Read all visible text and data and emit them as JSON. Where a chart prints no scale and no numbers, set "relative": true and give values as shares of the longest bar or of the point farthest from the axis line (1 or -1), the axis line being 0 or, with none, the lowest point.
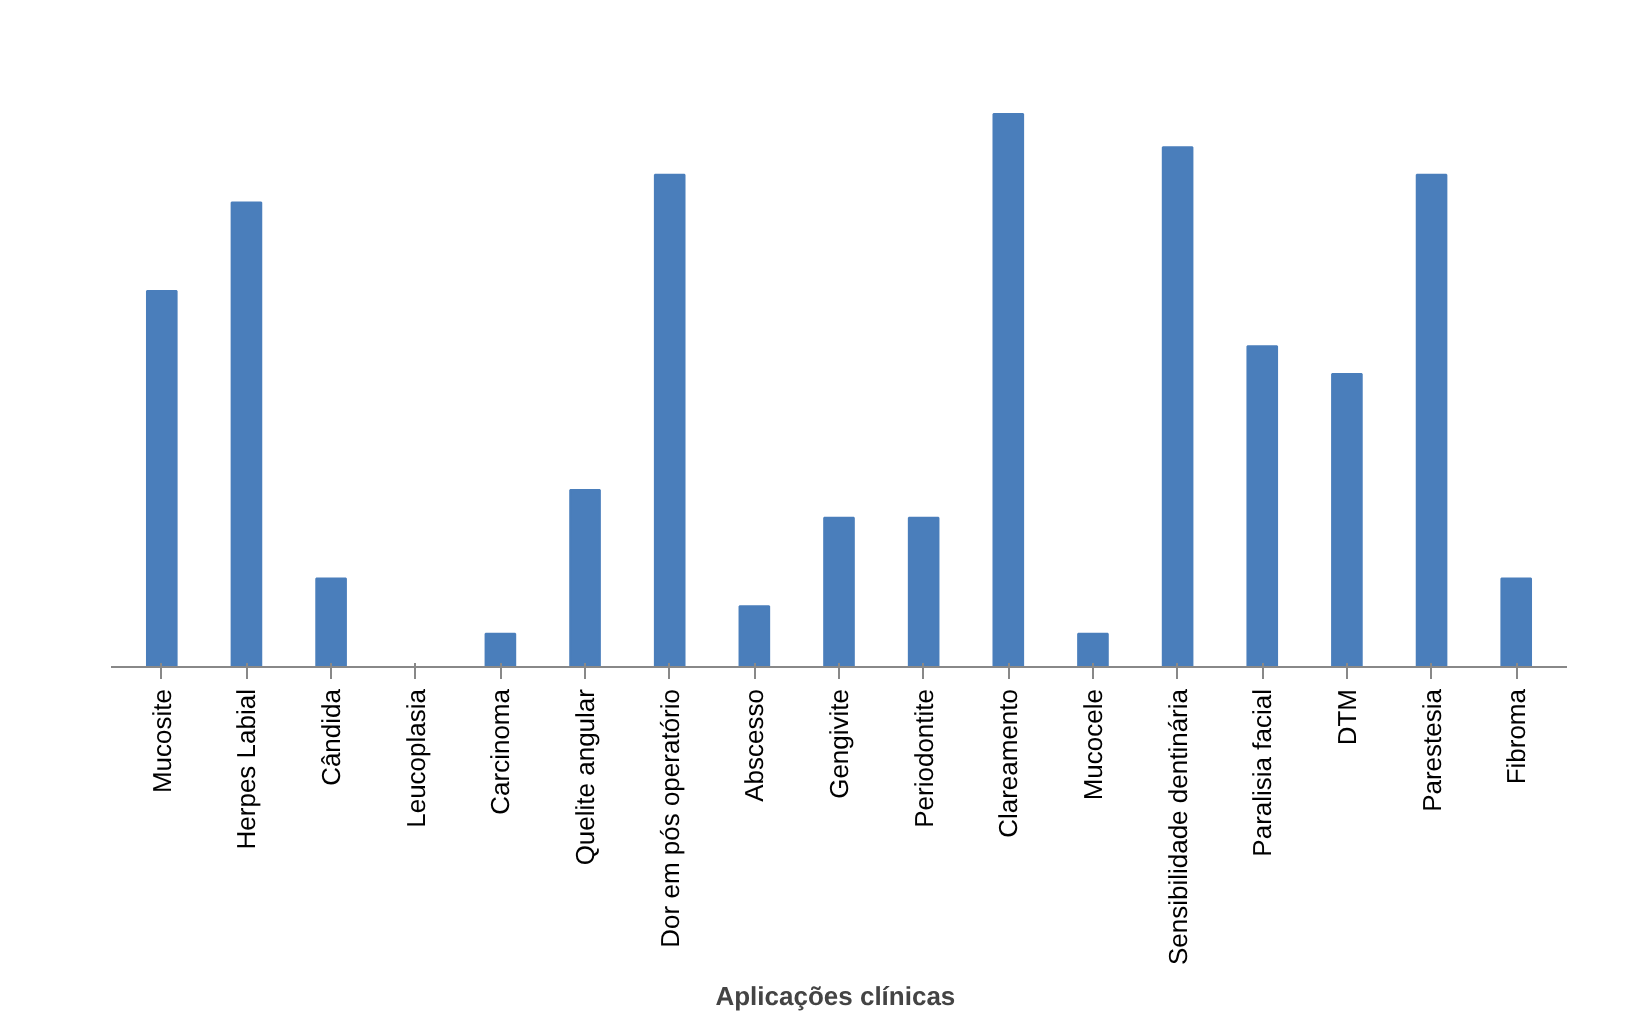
{
  "chart_data": {
    "type": "bar",
    "relative": true,
    "xlabel": "Aplicações  clínicas",
    "color": "#4a7ebb",
    "grid": false,
    "categories": [
      "Mucosite",
      "Herpes Labial",
      "Cândida",
      "Leucoplasia",
      "Carcinoma",
      "Quelite angular",
      "Dor em pós operatório",
      "Abscesso",
      "Gengivite",
      "Periodontite",
      "Clareamento",
      "Mucocele",
      "Sensibilidade dentinária",
      "Paralisia facial",
      "DTM",
      "Parestesia",
      "Fibroma"
    ],
    "values": [
      0.68,
      0.84,
      0.16,
      0.0,
      0.06,
      0.32,
      0.89,
      0.11,
      0.27,
      0.27,
      1,
      0.06,
      0.94,
      0.58,
      0.53,
      0.89,
      0.16
    ]
  }
}
